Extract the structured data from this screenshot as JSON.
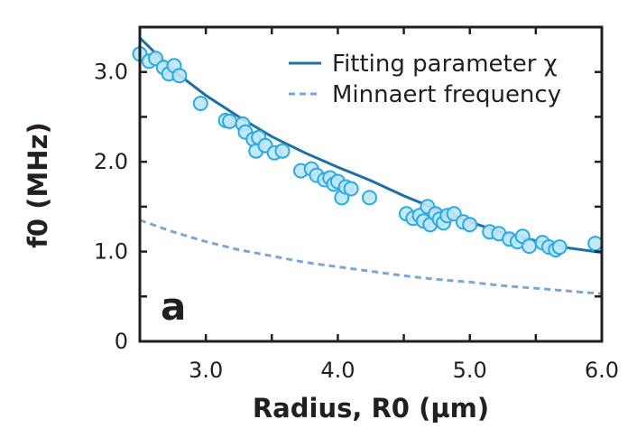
{
  "chart_data": {
    "type": "scatter",
    "panel_label": "a",
    "xlabel": "Radius, R0 (µm)",
    "ylabel": "f0 (MHz)",
    "xlim": [
      2.5,
      6.0
    ],
    "ylim": [
      0,
      3.5
    ],
    "x_ticks": [
      3.0,
      4.0,
      5.0,
      6.0
    ],
    "x_tick_labels": [
      "3.0",
      "4.0",
      "5.0",
      "6.0"
    ],
    "y_ticks": [
      0,
      1.0,
      2.0,
      3.0
    ],
    "y_tick_labels": [
      "0",
      "1.0",
      "2.0",
      "3.0"
    ],
    "grid": false,
    "legend_position": "top-right",
    "legend": [
      {
        "label": "Fitting parameter χ",
        "style": "solid",
        "color": "#1e6fa8"
      },
      {
        "label": "Minnaert frequency",
        "style": "dashed",
        "color": "#7aa7d8"
      }
    ],
    "series": [
      {
        "type": "scatter",
        "color": "#29abe2",
        "points": [
          [
            2.5,
            3.2
          ],
          [
            2.57,
            3.12
          ],
          [
            2.62,
            3.15
          ],
          [
            2.68,
            3.05
          ],
          [
            2.72,
            2.98
          ],
          [
            2.76,
            3.07
          ],
          [
            2.8,
            2.96
          ],
          [
            2.96,
            2.65
          ],
          [
            3.15,
            2.46
          ],
          [
            3.18,
            2.45
          ],
          [
            3.28,
            2.42
          ],
          [
            3.3,
            2.33
          ],
          [
            3.36,
            2.25
          ],
          [
            3.38,
            2.12
          ],
          [
            3.4,
            2.27
          ],
          [
            3.45,
            2.18
          ],
          [
            3.52,
            2.1
          ],
          [
            3.58,
            2.12
          ],
          [
            3.72,
            1.9
          ],
          [
            3.8,
            1.92
          ],
          [
            3.84,
            1.85
          ],
          [
            3.9,
            1.8
          ],
          [
            3.94,
            1.82
          ],
          [
            3.97,
            1.75
          ],
          [
            4.0,
            1.78
          ],
          [
            4.03,
            1.6
          ],
          [
            4.06,
            1.72
          ],
          [
            4.1,
            1.7
          ],
          [
            4.24,
            1.6
          ],
          [
            4.52,
            1.42
          ],
          [
            4.57,
            1.37
          ],
          [
            4.62,
            1.4
          ],
          [
            4.65,
            1.34
          ],
          [
            4.68,
            1.5
          ],
          [
            4.7,
            1.3
          ],
          [
            4.74,
            1.42
          ],
          [
            4.77,
            1.36
          ],
          [
            4.8,
            1.32
          ],
          [
            4.83,
            1.4
          ],
          [
            4.88,
            1.42
          ],
          [
            4.95,
            1.33
          ],
          [
            5.0,
            1.3
          ],
          [
            5.15,
            1.22
          ],
          [
            5.22,
            1.2
          ],
          [
            5.3,
            1.14
          ],
          [
            5.36,
            1.11
          ],
          [
            5.4,
            1.17
          ],
          [
            5.45,
            1.06
          ],
          [
            5.55,
            1.1
          ],
          [
            5.6,
            1.05
          ],
          [
            5.65,
            1.02
          ],
          [
            5.68,
            1.05
          ],
          [
            5.95,
            1.09
          ]
        ]
      },
      {
        "name": "Fitting parameter χ",
        "type": "line",
        "style": "solid",
        "color": "#1e6fa8",
        "points": [
          [
            2.5,
            3.38
          ],
          [
            2.75,
            3.02
          ],
          [
            3.0,
            2.74
          ],
          [
            3.25,
            2.5
          ],
          [
            3.5,
            2.28
          ],
          [
            3.75,
            2.1
          ],
          [
            4.0,
            1.94
          ],
          [
            4.25,
            1.79
          ],
          [
            4.5,
            1.62
          ],
          [
            4.75,
            1.47
          ],
          [
            5.0,
            1.33
          ],
          [
            5.25,
            1.21
          ],
          [
            5.5,
            1.12
          ],
          [
            5.75,
            1.04
          ],
          [
            6.0,
            0.99
          ]
        ]
      },
      {
        "name": "Minnaert frequency",
        "type": "line",
        "style": "dashed",
        "color": "#7aa7d8",
        "points": [
          [
            2.5,
            1.35
          ],
          [
            2.75,
            1.22
          ],
          [
            3.0,
            1.11
          ],
          [
            3.25,
            1.02
          ],
          [
            3.5,
            0.95
          ],
          [
            3.75,
            0.88
          ],
          [
            4.0,
            0.83
          ],
          [
            4.25,
            0.78
          ],
          [
            4.5,
            0.73
          ],
          [
            4.75,
            0.69
          ],
          [
            5.0,
            0.66
          ],
          [
            5.25,
            0.62
          ],
          [
            5.5,
            0.59
          ],
          [
            5.75,
            0.56
          ],
          [
            6.0,
            0.53
          ]
        ]
      }
    ]
  }
}
